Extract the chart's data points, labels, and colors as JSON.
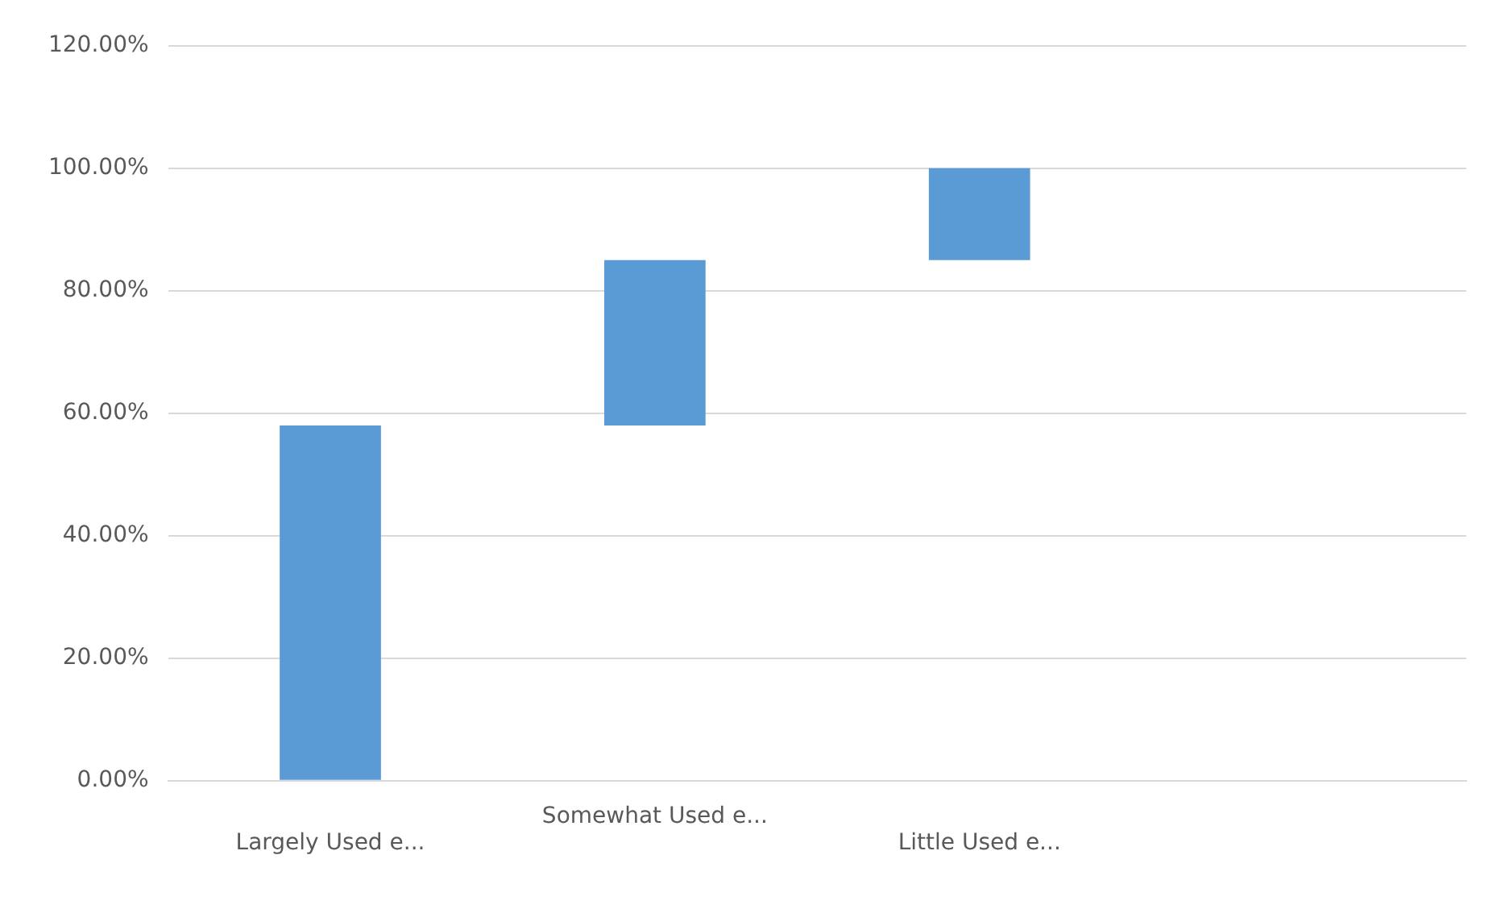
{
  "chart_data": {
    "type": "bar",
    "categories": [
      "Largely Used e...",
      "Somewhat Used e...",
      "Little Used e...",
      null
    ],
    "values": [
      58,
      27,
      15,
      null
    ],
    "base": [
      0,
      58,
      85,
      null
    ],
    "color": "#5b9bd5",
    "ylim": [
      0,
      120
    ],
    "yticks": [
      {
        "value": 0,
        "label": "0.00%"
      },
      {
        "value": 20,
        "label": "20.00%"
      },
      {
        "value": 40,
        "label": "40.00%"
      },
      {
        "value": 60,
        "label": "60.00%"
      },
      {
        "value": 80,
        "label": "80.00%"
      },
      {
        "value": 100,
        "label": "100.00%"
      },
      {
        "value": 120,
        "label": "120.00%"
      }
    ],
    "grid": "y",
    "legend": false
  }
}
